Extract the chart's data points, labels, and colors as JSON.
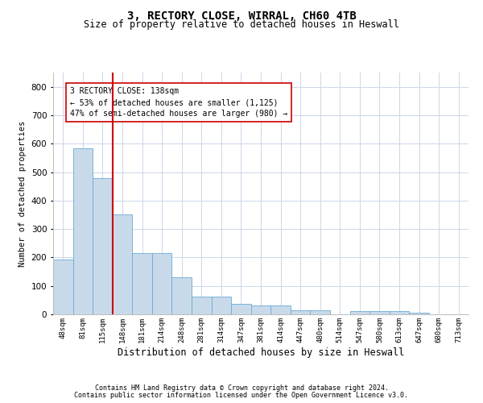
{
  "title_line1": "3, RECTORY CLOSE, WIRRAL, CH60 4TB",
  "title_line2": "Size of property relative to detached houses in Heswall",
  "xlabel": "Distribution of detached houses by size in Heswall",
  "ylabel": "Number of detached properties",
  "categories": [
    "48sqm",
    "81sqm",
    "115sqm",
    "148sqm",
    "181sqm",
    "214sqm",
    "248sqm",
    "281sqm",
    "314sqm",
    "347sqm",
    "381sqm",
    "414sqm",
    "447sqm",
    "480sqm",
    "514sqm",
    "547sqm",
    "580sqm",
    "613sqm",
    "647sqm",
    "680sqm",
    "713sqm"
  ],
  "values": [
    192,
    585,
    480,
    352,
    215,
    215,
    130,
    62,
    62,
    38,
    32,
    32,
    15,
    15,
    0,
    10,
    10,
    10,
    5,
    0,
    0
  ],
  "bar_color": "#c8daea",
  "bar_edge_color": "#6aaad4",
  "vline_color": "#cc0000",
  "annotation_text": "3 RECTORY CLOSE: 138sqm\n← 53% of detached houses are smaller (1,125)\n47% of semi-detached houses are larger (980) →",
  "annotation_box_color": "#cc0000",
  "ylim": [
    0,
    850
  ],
  "yticks": [
    0,
    100,
    200,
    300,
    400,
    500,
    600,
    700,
    800
  ],
  "footer_line1": "Contains HM Land Registry data © Crown copyright and database right 2024.",
  "footer_line2": "Contains public sector information licensed under the Open Government Licence v3.0.",
  "bg_color": "#ffffff",
  "grid_color": "#ccd6e8"
}
